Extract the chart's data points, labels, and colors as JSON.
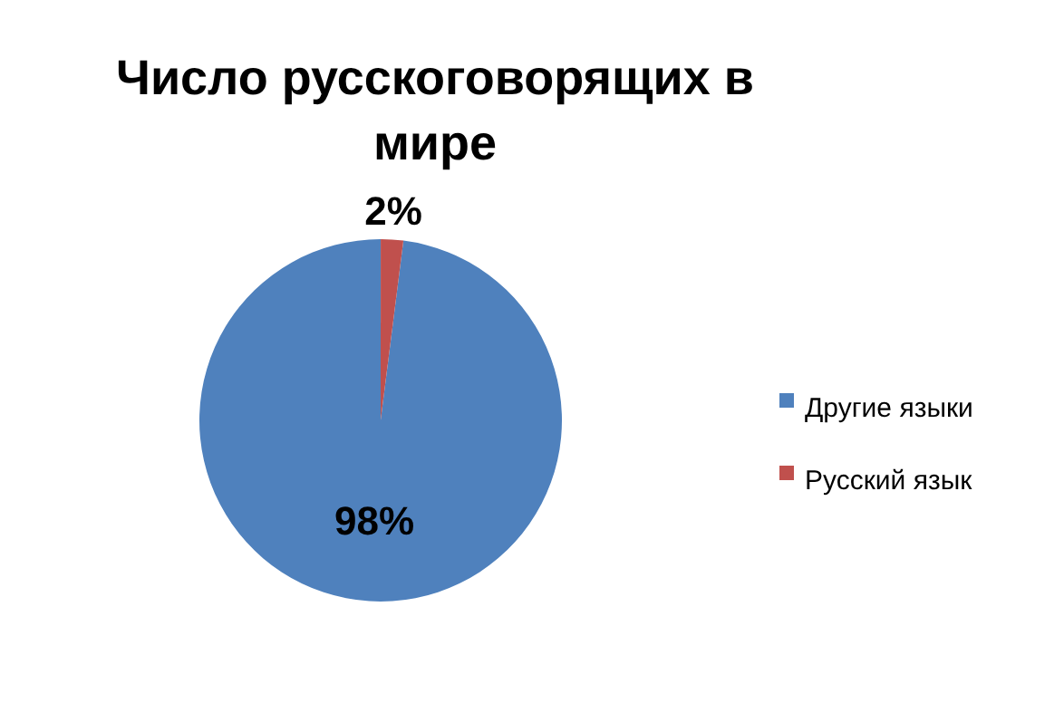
{
  "chart_data": {
    "type": "pie",
    "title": "Число русскоговорящих в мире",
    "categories": [
      "Другие языки",
      "Русский язык"
    ],
    "values": [
      98,
      2
    ],
    "colors": [
      "#4f81bd",
      "#c0504d"
    ],
    "value_labels": [
      "98%",
      "2%"
    ],
    "legend": "right"
  }
}
